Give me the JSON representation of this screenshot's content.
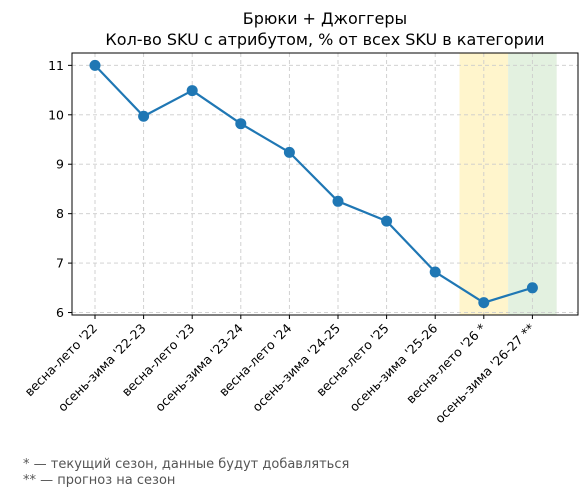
{
  "chart_data": {
    "type": "line",
    "title": "Брюки + Джоггеры",
    "subtitle": "Кол-во SKU с атрибутом, % от всех SKU в категории",
    "xlabel": "",
    "ylabel": "",
    "categories": [
      "весна-лето '22",
      "осень-зима '22-23",
      "весна-лето '23",
      "осень-зима '23-24",
      "весна-лето '24",
      "осень-зима '24-25",
      "весна-лето '25",
      "осень-зима '25-26",
      "весна-лето '26 *",
      "осень-зима '26-27 **"
    ],
    "series": [
      {
        "values": [
          11.0,
          9.97,
          10.49,
          9.82,
          9.24,
          8.25,
          7.85,
          6.82,
          6.2,
          6.5
        ],
        "color": "#1f77b4"
      }
    ],
    "ylim": [
      5.95,
      11.25
    ],
    "yticks": [
      "6",
      "7",
      "8",
      "9",
      "10",
      "11"
    ],
    "grid": true,
    "highlights": [
      {
        "category": "весна-лето '26 *",
        "color": "#fff5cc",
        "meaning": "current season"
      },
      {
        "category": "осень-зима '26-27 **",
        "color": "#e3f1e0",
        "meaning": "forecast"
      }
    ]
  },
  "footnotes": {
    "current": "* — текущий сезон, данные будут добавляться",
    "forecast": "** — прогноз на сезон"
  }
}
